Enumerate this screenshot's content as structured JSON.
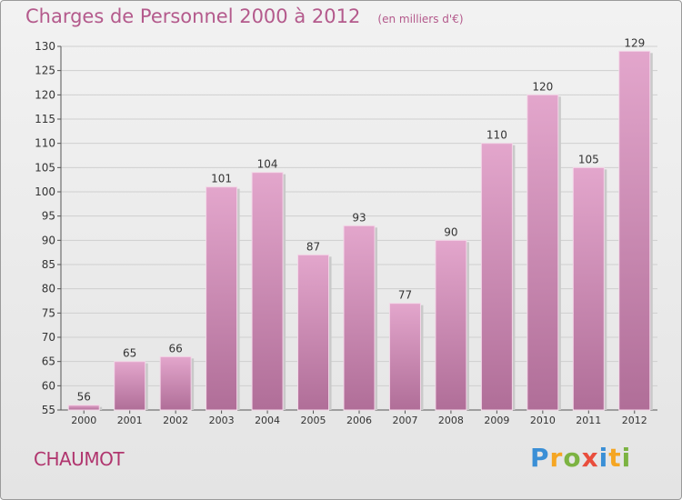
{
  "chart_data": {
    "type": "bar",
    "title": "Charges de Personnel 2000 à 2012",
    "subtitle": "(en milliers d'€)",
    "categories": [
      "2000",
      "2001",
      "2002",
      "2003",
      "2004",
      "2005",
      "2006",
      "2007",
      "2008",
      "2009",
      "2010",
      "2011",
      "2012"
    ],
    "values": [
      56,
      65,
      66,
      101,
      104,
      87,
      93,
      77,
      90,
      110,
      120,
      105,
      129
    ],
    "ylim": [
      55,
      130
    ],
    "yticks": [
      55,
      60,
      65,
      70,
      75,
      80,
      85,
      90,
      95,
      100,
      105,
      110,
      115,
      120,
      125,
      130
    ],
    "grid": true,
    "legend": "none",
    "bar_color_top": "#e3a6cc",
    "bar_color_bottom": "#b06e98"
  },
  "commune": "CHAUMOT",
  "logo": {
    "letters": [
      "P",
      "r",
      "o",
      "x",
      "i",
      "t",
      "i"
    ],
    "colors": [
      "#3a8fd6",
      "#f5a623",
      "#7cb342",
      "#e94e3d",
      "#3a8fd6",
      "#f5a623",
      "#7cb342"
    ]
  }
}
